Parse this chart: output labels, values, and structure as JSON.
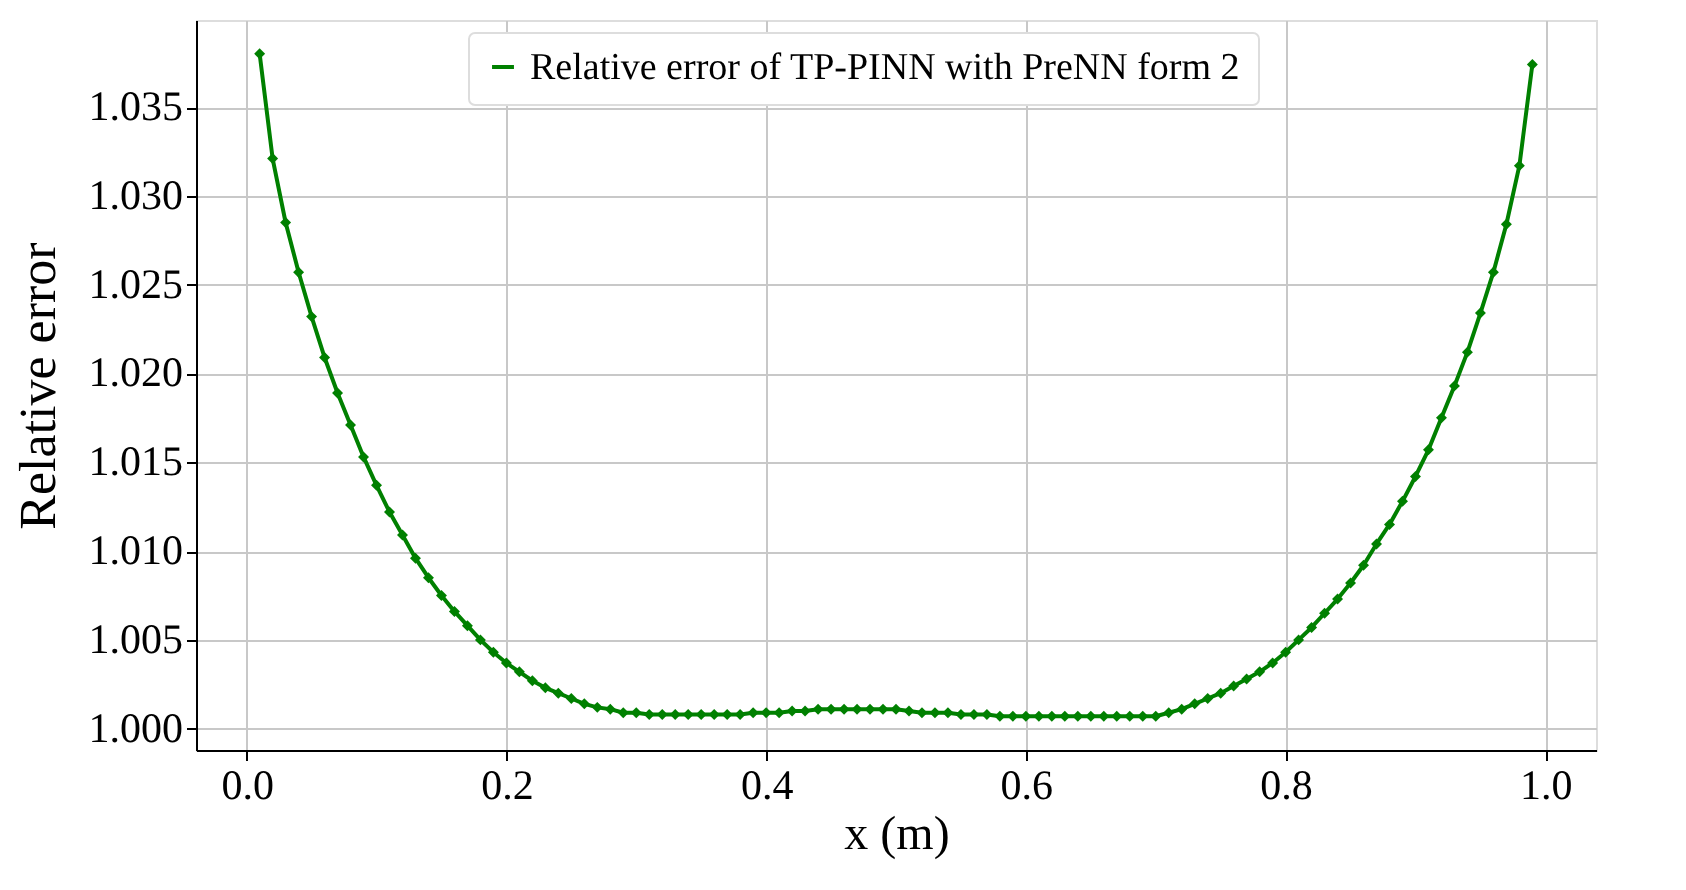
{
  "chart_data": {
    "type": "line",
    "xlabel": "x (m)",
    "ylabel": "Relative error",
    "x": [
      0.01,
      0.02,
      0.03,
      0.04,
      0.05,
      0.06,
      0.07,
      0.08,
      0.09,
      0.1,
      0.11,
      0.12,
      0.13,
      0.14,
      0.15,
      0.16,
      0.17,
      0.18,
      0.19,
      0.2,
      0.21,
      0.22,
      0.23,
      0.24,
      0.25,
      0.26,
      0.27,
      0.28,
      0.29,
      0.3,
      0.31,
      0.32,
      0.33,
      0.34,
      0.35,
      0.36,
      0.37,
      0.38,
      0.39,
      0.4,
      0.41,
      0.42,
      0.43,
      0.44,
      0.45,
      0.46,
      0.47,
      0.48,
      0.49,
      0.5,
      0.51,
      0.52,
      0.53,
      0.54,
      0.55,
      0.56,
      0.57,
      0.58,
      0.59,
      0.6,
      0.61,
      0.62,
      0.63,
      0.64,
      0.65,
      0.66,
      0.67,
      0.68,
      0.69,
      0.7,
      0.71,
      0.72,
      0.73,
      0.74,
      0.75,
      0.76,
      0.77,
      0.78,
      0.79,
      0.8,
      0.81,
      0.82,
      0.83,
      0.84,
      0.85,
      0.86,
      0.87,
      0.88,
      0.89,
      0.9,
      0.91,
      0.92,
      0.93,
      0.94,
      0.95,
      0.96,
      0.97,
      0.98,
      0.99
    ],
    "series": [
      {
        "name": "Relative error of TP-PINN with PreNN form 2",
        "color": "#008000",
        "values": [
          1.038,
          1.0321,
          1.0285,
          1.0257,
          1.0232,
          1.0209,
          1.0189,
          1.0171,
          1.0153,
          1.0137,
          1.0122,
          1.0109,
          1.0096,
          1.0085,
          1.0075,
          1.0066,
          1.0058,
          1.005,
          1.0043,
          1.0037,
          1.0032,
          1.0027,
          1.0023,
          1.002,
          1.0017,
          1.0014,
          1.0012,
          1.0011,
          1.0009,
          1.0009,
          1.0008,
          1.0008,
          1.0008,
          1.0008,
          1.0008,
          1.0008,
          1.0008,
          1.0008,
          1.0009,
          1.0009,
          1.0009,
          1.001,
          1.001,
          1.0011,
          1.0011,
          1.0011,
          1.0011,
          1.0011,
          1.0011,
          1.0011,
          1.001,
          1.0009,
          1.0009,
          1.0009,
          1.0008,
          1.0008,
          1.0008,
          1.0007,
          1.0007,
          1.0007,
          1.0007,
          1.0007,
          1.0007,
          1.0007,
          1.0007,
          1.0007,
          1.0007,
          1.0007,
          1.0007,
          1.0007,
          1.0009,
          1.0011,
          1.0014,
          1.0017,
          1.002,
          1.0024,
          1.0028,
          1.0032,
          1.0037,
          1.0043,
          1.005,
          1.0057,
          1.0065,
          1.0073,
          1.0082,
          1.0092,
          1.0104,
          1.0115,
          1.0128,
          1.0142,
          1.0157,
          1.0175,
          1.0193,
          1.0212,
          1.0234,
          1.0257,
          1.0284,
          1.0317,
          1.0374
        ]
      }
    ],
    "xlim": [
      -0.039,
      1.039
    ],
    "ylim": [
      0.9988,
      1.0399
    ],
    "xticks": [
      {
        "value": 0.0,
        "label": "0.0"
      },
      {
        "value": 0.2,
        "label": "0.2"
      },
      {
        "value": 0.4,
        "label": "0.4"
      },
      {
        "value": 0.6,
        "label": "0.6"
      },
      {
        "value": 0.8,
        "label": "0.8"
      },
      {
        "value": 1.0,
        "label": "1.0"
      }
    ],
    "yticks": [
      {
        "value": 1.0,
        "label": "1.000"
      },
      {
        "value": 1.005,
        "label": "1.005"
      },
      {
        "value": 1.01,
        "label": "1.010"
      },
      {
        "value": 1.015,
        "label": "1.015"
      },
      {
        "value": 1.02,
        "label": "1.020"
      },
      {
        "value": 1.025,
        "label": "1.025"
      },
      {
        "value": 1.03,
        "label": "1.030"
      },
      {
        "value": 1.035,
        "label": "1.035"
      }
    ],
    "grid": true,
    "legend": "top",
    "marker": "diamond",
    "line_style": "solid"
  }
}
